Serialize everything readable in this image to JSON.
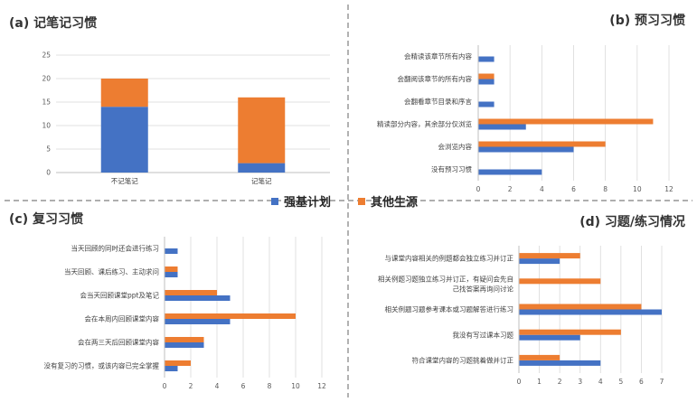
{
  "legend": {
    "series1": "强基计划",
    "series2": "其他生源"
  },
  "colors": {
    "series1": "#4472c4",
    "series2": "#ed7d31"
  },
  "chart_data": [
    {
      "type": "bar",
      "stacked": true,
      "title": "(a) 记笔记习惯",
      "categories": [
        "不记笔记",
        "记笔记"
      ],
      "series": [
        {
          "name": "强基计划",
          "values": [
            14,
            2
          ]
        },
        {
          "name": "其他生源",
          "values": [
            6,
            14
          ]
        }
      ],
      "ylim": [
        0,
        25
      ],
      "yticks": [
        0,
        5,
        10,
        15,
        20,
        25
      ],
      "grid": true
    },
    {
      "type": "bar",
      "orientation": "horizontal",
      "title": "(b) 预习习惯",
      "categories": [
        "没有预习习惯",
        "会浏览内容",
        "精读部分内容，其余部分仅浏览",
        "会翻看章节目录和序言",
        "会翻阅该章节的所有内容",
        "会精读该章节所有内容"
      ],
      "series": [
        {
          "name": "强基计划",
          "values": [
            4,
            6,
            3,
            1,
            1,
            1
          ]
        },
        {
          "name": "其他生源",
          "values": [
            0,
            8,
            11,
            0,
            1,
            0
          ]
        }
      ],
      "xlim": [
        0,
        12
      ],
      "xticks": [
        0,
        2,
        4,
        6,
        8,
        10,
        12
      ],
      "grid": true
    },
    {
      "type": "bar",
      "orientation": "horizontal",
      "title": "(c) 复习习惯",
      "categories": [
        "没有复习的习惯，或该内容已完全掌握",
        "会在两三天后回顾课堂内容",
        "会在本周内回顾课堂内容",
        "会当天回顾课堂ppt及笔记",
        "当天回顾、课后练习、主动求问",
        "当天回顾的同时还会进行练习"
      ],
      "series": [
        {
          "name": "强基计划",
          "values": [
            1,
            3,
            5,
            5,
            1,
            1
          ]
        },
        {
          "name": "其他生源",
          "values": [
            2,
            3,
            10,
            4,
            1,
            0
          ]
        }
      ],
      "xlim": [
        0,
        12
      ],
      "xticks": [
        0,
        2,
        4,
        6,
        8,
        10,
        12
      ],
      "grid": true
    },
    {
      "type": "bar",
      "orientation": "horizontal",
      "title": "(d) 习题/练习情况",
      "categories": [
        "符合课堂内容的习题挑着做并订正",
        "我没有写过课本习题",
        "相关例题习题参考课本或习题解答进行练习",
        "相关例题习题独立练习并订正，有疑问会先自己找答案再询问讨论",
        "与课堂内容相关的例题都会独立练习并订正"
      ],
      "category_lines": [
        [
          "符合课堂内容的习题挑着做并订正"
        ],
        [
          "我没有写过课本习题"
        ],
        [
          "相关例题习题参考课本或习题解答进行练习"
        ],
        [
          "相关例题习题独立练习并订正，有疑问会先自",
          "己找答案再询问讨论"
        ],
        [
          "与课堂内容相关的例题都会独立练习并订正"
        ]
      ],
      "series": [
        {
          "name": "强基计划",
          "values": [
            4,
            3,
            7,
            0,
            2
          ]
        },
        {
          "name": "其他生源",
          "values": [
            2,
            5,
            6,
            4,
            3
          ]
        }
      ],
      "xlim": [
        0,
        7
      ],
      "xticks": [
        0,
        1,
        2,
        3,
        4,
        5,
        6,
        7
      ],
      "grid": true
    }
  ]
}
